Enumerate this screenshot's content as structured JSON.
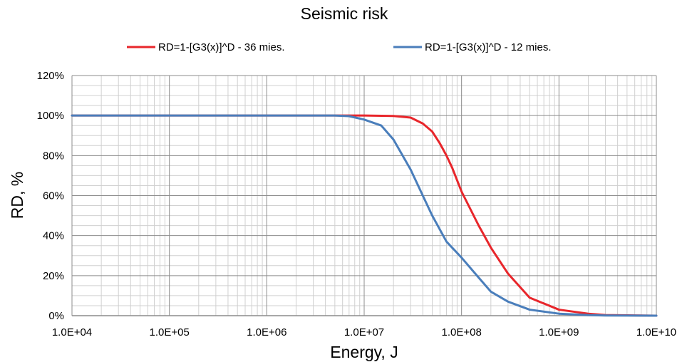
{
  "chart_data": {
    "type": "line",
    "title": "Seismic risk",
    "xlabel": "Energy, J",
    "ylabel": "RD, %",
    "x_scale": "log",
    "xlim": [
      10000,
      10000000000
    ],
    "ylim": [
      0,
      120
    ],
    "x_ticks": [
      10000,
      100000,
      1000000,
      10000000,
      100000000,
      1000000000,
      10000000000
    ],
    "x_tick_labels": [
      "1.0E+04",
      "1.0E+05",
      "1.0E+06",
      "1.0E+07",
      "1.0E+08",
      "1.0E+09",
      "1.0E+10"
    ],
    "y_ticks": [
      0,
      20,
      40,
      60,
      80,
      100,
      120
    ],
    "y_tick_labels": [
      "0%",
      "20%",
      "40%",
      "60%",
      "80%",
      "100%",
      "120%"
    ],
    "grid": true,
    "legend_position": "top",
    "series": [
      {
        "name": "RD=1-[G3(x)]^D - 36 mies.",
        "color": "#e8262b",
        "x": [
          10000,
          1000000,
          5000000,
          10000000,
          20000000,
          30000000,
          40000000,
          50000000,
          60000000,
          70000000,
          80000000,
          100000000,
          150000000,
          200000000,
          300000000,
          500000000,
          1000000000,
          2000000000,
          3000000000,
          10000000000
        ],
        "y": [
          100,
          100,
          100,
          100,
          99.8,
          99,
          96,
          92,
          86,
          80,
          74,
          62,
          45,
          34,
          21,
          9,
          3,
          1,
          0.3,
          0
        ]
      },
      {
        "name": "RD=1-[G3(x)]^D - 12 mies.",
        "color": "#4a7ebb",
        "x": [
          10000,
          1000000,
          5000000,
          7000000,
          10000000,
          15000000,
          20000000,
          30000000,
          40000000,
          50000000,
          70000000,
          100000000,
          150000000,
          200000000,
          300000000,
          500000000,
          1000000000,
          2000000000,
          3000000000,
          10000000000
        ],
        "y": [
          100,
          100,
          100,
          99.7,
          98,
          95,
          88,
          73,
          60,
          50,
          37,
          29,
          19,
          12,
          7,
          3,
          1,
          0.3,
          0.1,
          0
        ]
      }
    ]
  }
}
